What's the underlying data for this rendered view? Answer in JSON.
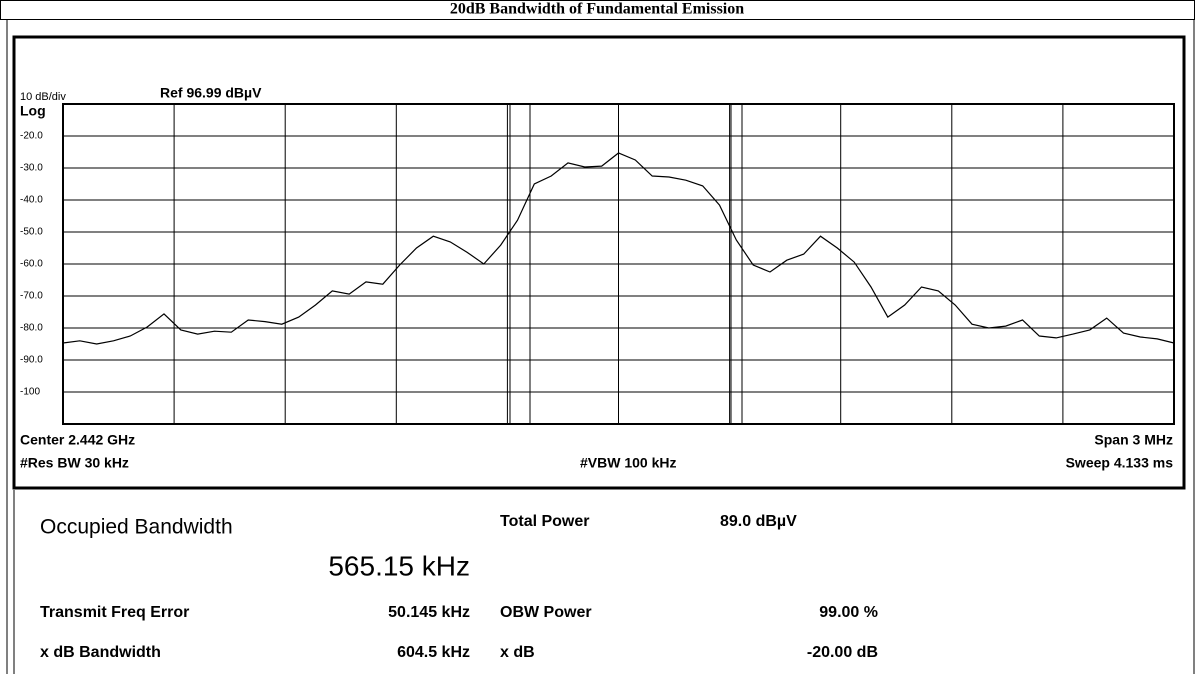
{
  "title": "20dB Bandwidth of Fundamental Emission",
  "chart_data": {
    "type": "line",
    "scale_label": "10 dB/div",
    "ref_label": "Ref 96.99 dBµV",
    "log_label": "Log",
    "ylim": [
      -110,
      -10
    ],
    "yticks": [
      {
        "value": -20,
        "label": "-20.0"
      },
      {
        "value": -30,
        "label": "-30.0"
      },
      {
        "value": -40,
        "label": "-40.0"
      },
      {
        "value": -50,
        "label": "-50.0"
      },
      {
        "value": -60,
        "label": "-60.0"
      },
      {
        "value": -70,
        "label": "-70.0"
      },
      {
        "value": -80,
        "label": "-80.0"
      },
      {
        "value": -90,
        "label": "-90.0"
      },
      -100
    ],
    "grid": true,
    "color": "#000000",
    "values": [
      -84.7,
      -84,
      -85,
      -84,
      -82.5,
      -79.7,
      -75.6,
      -80.6,
      -81.9,
      -81,
      -81.3,
      -77.5,
      -78,
      -78.8,
      -76.6,
      -72.8,
      -68.4,
      -69.4,
      -65.6,
      -66.3,
      -60.3,
      -55,
      -51.3,
      -53.1,
      -56.3,
      -60,
      -54.1,
      -46.3,
      -35,
      -32.5,
      -28.4,
      -29.7,
      -29.4,
      -25.3,
      -27.5,
      -32.5,
      -32.8,
      -33.8,
      -35.6,
      -41.6,
      -52.5,
      -60.3,
      -62.5,
      -58.8,
      -56.9,
      -51.3,
      -55,
      -59.4,
      -67.2,
      -76.6,
      -72.8,
      -67.2,
      -68.4,
      -72.8,
      -78.8,
      -80,
      -79.4,
      -77.5,
      -82.5,
      -83.1,
      -81.9,
      -80.6,
      -76.9,
      -81.6,
      -82.8,
      -83.4,
      -84.7
    ],
    "center_label": "Center 2.442 GHz",
    "span_label": "Span 3 MHz",
    "rbw_label": "#Res BW 30 kHz",
    "vbw_label": "#VBW 100 kHz",
    "sweep_label": "Sweep 4.133 ms"
  },
  "results": {
    "obw_label": "Occupied Bandwidth",
    "obw_value": "565.15 kHz",
    "total_power_label": "Total Power",
    "total_power_value": "89.0 dBµV",
    "freq_error_label": "Transmit Freq Error",
    "freq_error_value": "50.145 kHz",
    "obw_power_label": "OBW Power",
    "obw_power_value": "99.00 %",
    "xdb_bw_label": "x dB Bandwidth",
    "xdb_bw_value": "604.5 kHz",
    "xdb_label": "x dB",
    "xdb_value": "-20.00 dB"
  }
}
